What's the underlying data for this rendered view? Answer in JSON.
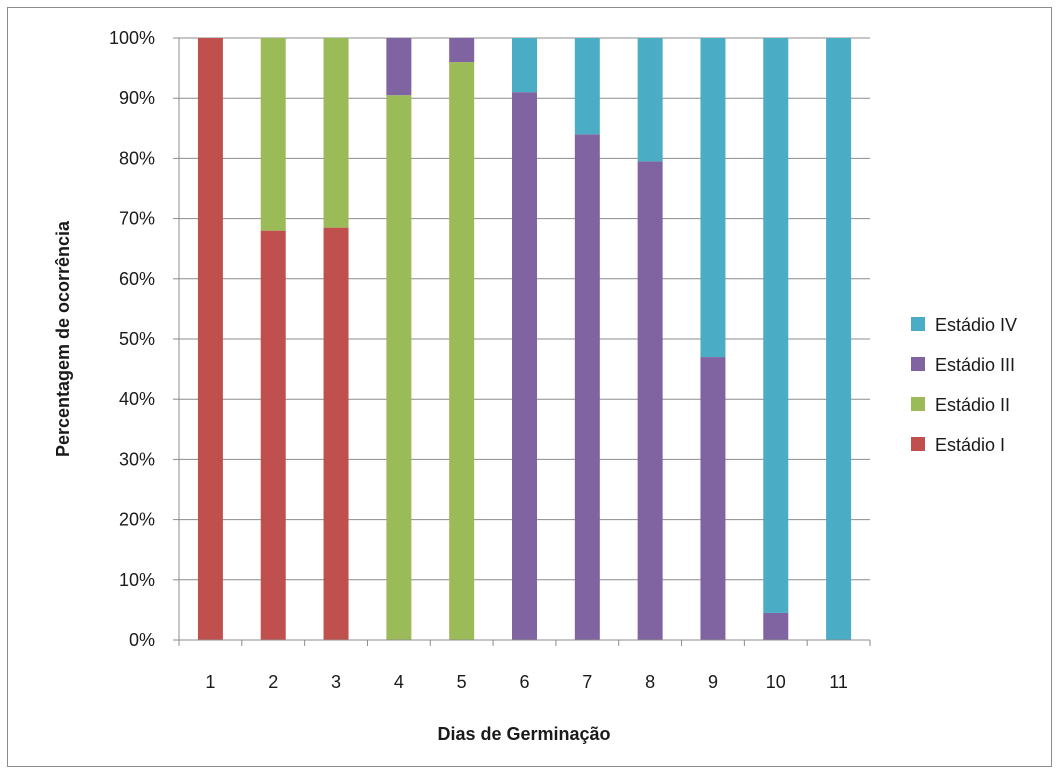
{
  "chart_data": {
    "type": "bar",
    "stacked": true,
    "normalized_percent": true,
    "categories": [
      "1",
      "2",
      "3",
      "4",
      "5",
      "6",
      "7",
      "8",
      "9",
      "10",
      "11"
    ],
    "series": [
      {
        "name": "Estádio I",
        "color": "#c0504d",
        "values": [
          100,
          68,
          68.5,
          0,
          0,
          0,
          0,
          0,
          0,
          0,
          0
        ]
      },
      {
        "name": "Estádio II",
        "color": "#9bbb59",
        "values": [
          0,
          32,
          31.5,
          90.5,
          96,
          0,
          0,
          0,
          0,
          0,
          0
        ]
      },
      {
        "name": "Estádio III",
        "color": "#8064a2",
        "values": [
          0,
          0,
          0,
          9.5,
          4,
          91,
          84,
          79.5,
          47,
          4.5,
          0
        ]
      },
      {
        "name": "Estádio IV",
        "color": "#4bacc6",
        "values": [
          0,
          0,
          0,
          0,
          0,
          9,
          16,
          20.5,
          53,
          95.5,
          100
        ]
      }
    ],
    "legend_order": [
      "Estádio IV",
      "Estádio III",
      "Estádio II",
      "Estádio I"
    ],
    "xlabel": "Dias de Germinação",
    "ylabel": "Percentagem de ocorrência",
    "ylim": [
      0,
      100
    ],
    "yticks": [
      "0%",
      "10%",
      "20%",
      "30%",
      "40%",
      "50%",
      "60%",
      "70%",
      "80%",
      "90%",
      "100%"
    ],
    "grid": "horizontal",
    "legend_position": "right",
    "gridline_color": "#8c8c8c"
  }
}
